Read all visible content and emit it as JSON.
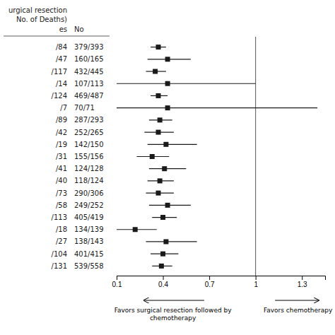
{
  "chart_data": {
    "type": "forest",
    "categories": [
      "/84",
      "/47",
      "/117",
      "/14",
      "/124",
      "/7",
      "/89",
      "/42",
      "/19",
      "/31",
      "/41",
      "/40",
      "/73",
      "/58",
      "/113",
      "/18",
      "/27",
      "/104",
      "/131"
    ],
    "right_labels": [
      "379/393",
      "160/165",
      "432/445",
      "107/113",
      "469/487",
      "70/71",
      "287/293",
      "252/265",
      "142/150",
      "155/156",
      "124/128",
      "118/124",
      "290/306",
      "249/252",
      "405/419",
      "134/139",
      "138/143",
      "401/415",
      "539/558"
    ],
    "values": [
      0.37,
      0.43,
      0.35,
      0.43,
      0.37,
      0.43,
      0.38,
      0.37,
      0.42,
      0.33,
      0.41,
      0.38,
      0.37,
      0.43,
      0.4,
      0.22,
      0.42,
      0.4,
      0.39
    ],
    "ci_low": [
      0.32,
      0.3,
      0.29,
      0.1,
      0.32,
      0.1,
      0.31,
      0.28,
      0.3,
      0.23,
      0.31,
      0.3,
      0.29,
      0.31,
      0.33,
      0.1,
      0.29,
      0.32,
      0.33
    ],
    "ci_high": [
      0.42,
      0.58,
      0.42,
      1.0,
      0.43,
      1.4,
      0.46,
      0.47,
      0.62,
      0.44,
      0.55,
      0.47,
      0.47,
      0.58,
      0.49,
      0.36,
      0.62,
      0.5,
      0.46
    ],
    "xlim": [
      0.1,
      1.45
    ],
    "xticks": [
      0.1,
      0.4,
      0.7,
      1,
      1.3
    ],
    "reference_line": 1,
    "left_header": [
      "urgical resection",
      "No. of Deaths)",
      "es"
    ],
    "right_header": "No",
    "arrow_labels": {
      "left": [
        "Favors surgical resection followed by",
        "chemotherapy"
      ],
      "right": [
        "Favors chemotherapy"
      ]
    },
    "color": "#1a1a1a"
  }
}
